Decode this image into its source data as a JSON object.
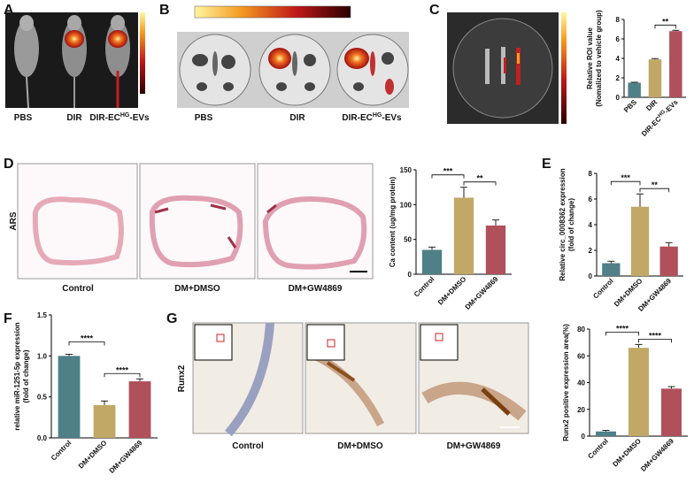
{
  "panel_labels": [
    "A",
    "B",
    "C",
    "D",
    "E",
    "F",
    "G"
  ],
  "panel_a": {
    "labels": [
      "PBS",
      "DIR",
      [
        "DIR-EC",
        "HG",
        "-EVs"
      ]
    ]
  },
  "panel_b": {
    "labels": [
      "PBS",
      "DIR",
      [
        "DIR-EC",
        "HG",
        "-EVs"
      ]
    ]
  },
  "panel_d": {
    "stain": "ARS",
    "labels": [
      "Control",
      "DM+DMSO",
      "DM+GW4869"
    ]
  },
  "panel_g": {
    "stain": "Runx2",
    "labels": [
      "Control",
      "DM+DMSO",
      "DM+GW4869"
    ]
  },
  "chart_data": [
    {
      "type": "bar",
      "ylabel": [
        "Relative ROI value",
        "(Nomalized to vehicle group)"
      ],
      "categories": [
        "PBS",
        "DIR",
        [
          "DIR-EC",
          "HG",
          "-EVs"
        ]
      ],
      "values": [
        1.5,
        3.9,
        6.8
      ],
      "errors": [
        0.05,
        0.08,
        0.08
      ],
      "colors": [
        "#4f7f87",
        "#c2a866",
        "#b0505a"
      ],
      "ylim": [
        0,
        8
      ],
      "yticks": [
        0,
        2,
        4,
        6,
        8
      ],
      "significance": [
        {
          "label": "**",
          "between": [
            "DIR",
            [
              "DIR-EC",
              "HG",
              "-EVs"
            ]
          ]
        }
      ]
    },
    {
      "type": "bar",
      "ylabel": [
        "Ca content (ug/mg protein)"
      ],
      "categories": [
        "Control",
        "DM+DMSO",
        "DM+GW4869"
      ],
      "values": [
        35,
        110,
        70
      ],
      "errors": [
        4,
        15,
        8
      ],
      "colors": [
        "#4f7f87",
        "#c2a866",
        "#b0505a"
      ],
      "ylim": [
        0,
        150
      ],
      "yticks": [
        0,
        50,
        100,
        150
      ],
      "significance": [
        {
          "label": "***",
          "between": [
            "Control",
            "DM+DMSO"
          ]
        },
        {
          "label": "**",
          "between": [
            "DM+DMSO",
            "DM+GW4869"
          ]
        }
      ]
    },
    {
      "type": "bar",
      "ylabel": [
        "Relative circ_0008362 expression",
        "(fold of change)"
      ],
      "categories": [
        "Control",
        "DM+DMSO",
        "DM+GW4869"
      ],
      "values": [
        1.0,
        5.4,
        2.3
      ],
      "errors": [
        0.15,
        1.0,
        0.3
      ],
      "colors": [
        "#4f7f87",
        "#c2a866",
        "#b0505a"
      ],
      "ylim": [
        0,
        8
      ],
      "yticks": [
        0,
        2,
        4,
        6,
        8
      ],
      "significance": [
        {
          "label": "***",
          "between": [
            "Control",
            "DM+DMSO"
          ]
        },
        {
          "label": "**",
          "between": [
            "DM+DMSO",
            "DM+GW4869"
          ]
        }
      ]
    },
    {
      "type": "bar",
      "ylabel": [
        "relative miR-1251-5p expression",
        "(fold of change)"
      ],
      "categories": [
        "Control",
        "DM+DMSO",
        "DM+GW4869"
      ],
      "values": [
        1.0,
        0.4,
        0.69
      ],
      "errors": [
        0.02,
        0.05,
        0.03
      ],
      "colors": [
        "#4f7f87",
        "#c2a866",
        "#b0505a"
      ],
      "ylim": [
        0,
        1.5
      ],
      "yticks": [
        {
          "value": 0,
          "label": "0.0"
        },
        0.5,
        {
          "value": 1,
          "label": "1.0"
        },
        1.5
      ],
      "significance": [
        {
          "label": "****",
          "between": [
            "Control",
            "DM+DMSO"
          ]
        },
        {
          "label": "****",
          "between": [
            "DM+DMSO",
            "DM+GW4869"
          ]
        }
      ]
    },
    {
      "type": "bar",
      "ylabel": [
        "Runx2 positive expression area(%)"
      ],
      "categories": [
        "Control",
        "DM+DMSO",
        "DM+GW4869"
      ],
      "values": [
        3.5,
        66,
        35.5
      ],
      "errors": [
        0.8,
        2.5,
        1.5
      ],
      "colors": [
        "#4f7f87",
        "#c2a866",
        "#b0505a"
      ],
      "ylim": [
        0,
        80
      ],
      "yticks": [
        0,
        20,
        40,
        60,
        80
      ],
      "significance": [
        {
          "label": "****",
          "between": [
            "Control",
            "DM+DMSO"
          ]
        },
        {
          "label": "****",
          "between": [
            "DM+DMSO",
            "DM+GW4869"
          ]
        }
      ]
    }
  ]
}
